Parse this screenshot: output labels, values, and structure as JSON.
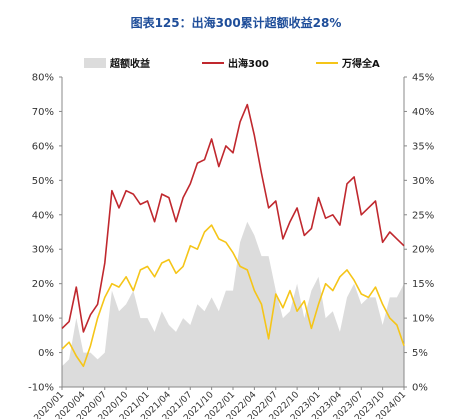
{
  "chart_data": {
    "type": "line",
    "title": "图表125：出海300累计超额收益28%",
    "legend": {
      "placement": "top",
      "items": [
        {
          "label": "超额收益",
          "kind": "area",
          "color": "#dcdcdc"
        },
        {
          "label": "出海300",
          "kind": "line",
          "color": "#c0282e"
        },
        {
          "label": "万得全A",
          "kind": "line",
          "color": "#f5c518"
        }
      ]
    },
    "x_tick_labels": [
      "2020/01",
      "2020/04",
      "2020/07",
      "2020/10",
      "2021/01",
      "2021/04",
      "2021/07",
      "2021/10",
      "2022/01",
      "2022/04",
      "2022/07",
      "2022/10",
      "2023/01",
      "2023/04",
      "2023/07",
      "2023/10",
      "2024/01"
    ],
    "left_axis": {
      "range": [
        -10,
        80
      ],
      "ticks": [
        "-10%",
        "0%",
        "10%",
        "20%",
        "30%",
        "40%",
        "50%",
        "60%",
        "70%",
        "80%"
      ]
    },
    "right_axis": {
      "range": [
        0,
        45
      ],
      "ticks": [
        "0%",
        "5%",
        "10%",
        "15%",
        "20%",
        "25%",
        "30%",
        "35%",
        "40%",
        "45%"
      ]
    },
    "x": [
      0,
      1,
      2,
      3,
      4,
      5,
      6,
      7,
      8,
      9,
      10,
      11,
      12,
      13,
      14,
      15,
      16,
      17,
      18,
      19,
      20,
      21,
      22,
      23,
      24,
      25,
      26,
      27,
      28,
      29,
      30,
      31,
      32,
      33,
      34,
      35,
      36,
      37,
      38,
      39,
      40,
      41,
      42,
      43,
      44,
      45,
      46,
      47,
      48
    ],
    "series": [
      {
        "name": "出海300",
        "axis": "left",
        "color": "#c0282e",
        "values": [
          7,
          9,
          19,
          6,
          11,
          14,
          26,
          47,
          42,
          47,
          46,
          43,
          44,
          38,
          46,
          45,
          38,
          45,
          49,
          55,
          56,
          62,
          54,
          60,
          58,
          67,
          72,
          63,
          52,
          42,
          44,
          33,
          38,
          42,
          34,
          36,
          45,
          39,
          40,
          37,
          49,
          51,
          40,
          42,
          44,
          32,
          35,
          33,
          31
        ]
      },
      {
        "name": "万得全A",
        "axis": "left",
        "color": "#f5c518",
        "values": [
          1,
          3,
          -1,
          -4,
          2,
          10,
          16,
          20,
          19,
          22,
          18,
          24,
          25,
          22,
          26,
          27,
          23,
          25,
          31,
          30,
          35,
          37,
          33,
          32,
          29,
          25,
          24,
          18,
          14,
          4,
          17,
          13,
          18,
          12,
          15,
          7,
          14,
          20,
          18,
          22,
          24,
          21,
          17,
          16,
          19,
          14,
          10,
          8,
          2
        ]
      },
      {
        "name": "超额收益",
        "axis": "right",
        "color": "#dcdcdc",
        "values": [
          3,
          4,
          10,
          5,
          5,
          4,
          5,
          14,
          11,
          12,
          14,
          10,
          10,
          8,
          11,
          9,
          8,
          10,
          9,
          12,
          11,
          13,
          11,
          14,
          14,
          21,
          24,
          22,
          19,
          19,
          14,
          10,
          11,
          15,
          10,
          14,
          16,
          10,
          11,
          8,
          13,
          15,
          12,
          13,
          13,
          9,
          13,
          13,
          15
        ]
      }
    ]
  }
}
